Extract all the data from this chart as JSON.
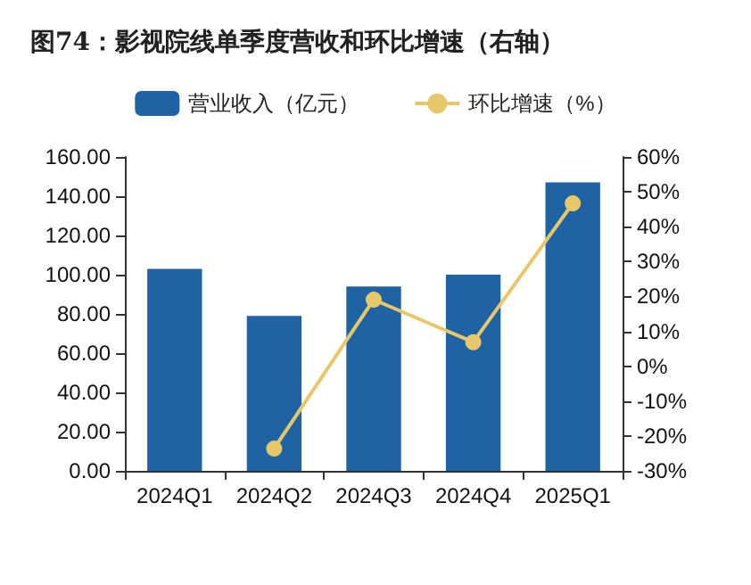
{
  "chart_data": {
    "type": "bar",
    "title": "图74：影视院线单季度营收和环比增速（右轴）",
    "categories": [
      "2024Q1",
      "2024Q2",
      "2024Q3",
      "2024Q4",
      "2025Q1"
    ],
    "series": [
      {
        "name": "营业收入（亿元）",
        "color": "#1f63a4",
        "values": [
          103,
          79,
          94,
          100,
          147
        ]
      },
      {
        "name": "环比增速（%）",
        "type": "line",
        "axis": "y2",
        "color": "#e6c76a",
        "values": [
          null,
          -23.6,
          19.1,
          6.9,
          46.7
        ]
      }
    ],
    "ylim": [
      0,
      160
    ],
    "yticks": [
      {
        "value": 0,
        "label": "0.00"
      },
      {
        "value": 20,
        "label": "20.00"
      },
      {
        "value": 40,
        "label": "40.00"
      },
      {
        "value": 60,
        "label": "60.00"
      },
      {
        "value": 80,
        "label": "80.00"
      },
      {
        "value": 100,
        "label": "100.00"
      },
      {
        "value": 120,
        "label": "120.00"
      },
      {
        "value": 140,
        "label": "140.00"
      },
      {
        "value": 160,
        "label": "160.00"
      }
    ],
    "y2lim": [
      -30,
      60
    ],
    "y2ticks": [
      {
        "value": -30,
        "label": "-30%"
      },
      {
        "value": -20,
        "label": "-20%"
      },
      {
        "value": -10,
        "label": "-10%"
      },
      {
        "value": 0,
        "label": "0%"
      },
      {
        "value": 10,
        "label": "10%"
      },
      {
        "value": 20,
        "label": "20%"
      },
      {
        "value": 30,
        "label": "30%"
      },
      {
        "value": 40,
        "label": "40%"
      },
      {
        "value": 50,
        "label": "50%"
      },
      {
        "value": 60,
        "label": "60%"
      }
    ],
    "grid": false,
    "legend": "top",
    "marker": "circle",
    "line_style": "solid"
  }
}
